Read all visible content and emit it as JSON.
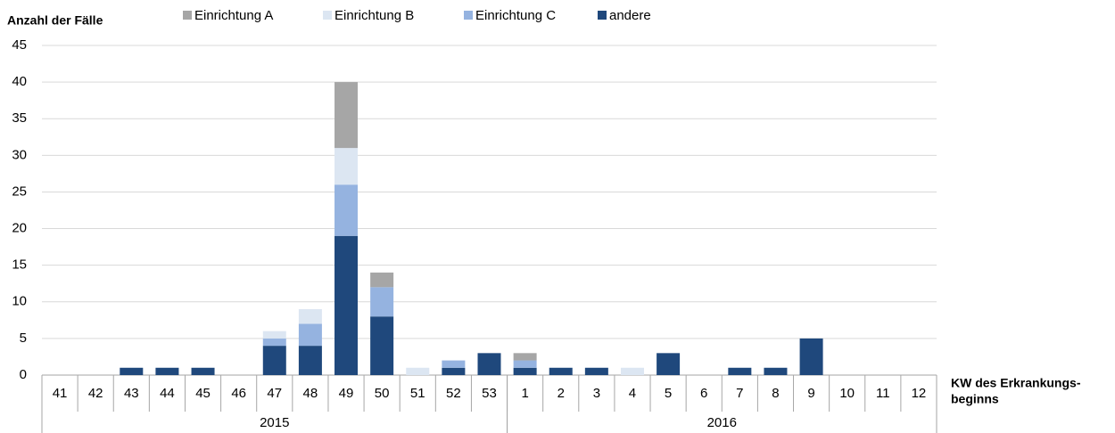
{
  "chart_data": {
    "type": "stacked_bar",
    "y_label": "Anzahl der Fälle",
    "x_label": [
      "KW des Erkrankungs-",
      "beginns"
    ],
    "categories": [
      "41",
      "42",
      "43",
      "44",
      "45",
      "46",
      "47",
      "48",
      "49",
      "50",
      "51",
      "52",
      "53",
      "1",
      "2",
      "3",
      "4",
      "5",
      "6",
      "7",
      "8",
      "9",
      "10",
      "11",
      "12"
    ],
    "x_groups": [
      {
        "label": "2015",
        "span": 13
      },
      {
        "label": "2016",
        "span": 12
      }
    ],
    "series": [
      {
        "name": "Einrichtung A",
        "color": "#a6a6a6",
        "values": [
          0,
          0,
          0,
          0,
          0,
          0,
          0,
          0,
          9,
          2,
          0,
          0,
          0,
          1,
          0,
          0,
          0,
          0,
          0,
          0,
          0,
          0,
          0,
          0,
          0
        ]
      },
      {
        "name": "Einrichtung B",
        "color": "#dce6f2",
        "values": [
          0,
          0,
          0,
          0,
          0,
          0,
          1,
          2,
          5,
          0,
          1,
          0,
          0,
          0,
          0,
          0,
          1,
          0,
          0,
          0,
          0,
          0,
          0,
          0,
          0
        ]
      },
      {
        "name": "Einrichtung C",
        "color": "#95b3e0",
        "values": [
          0,
          0,
          0,
          0,
          0,
          0,
          1,
          3,
          7,
          4,
          0,
          1,
          0,
          1,
          0,
          0,
          0,
          0,
          0,
          0,
          0,
          0,
          0,
          0,
          0
        ]
      },
      {
        "name": "andere",
        "color": "#1f487c",
        "values": [
          0,
          0,
          1,
          1,
          1,
          0,
          4,
          4,
          19,
          8,
          0,
          1,
          3,
          1,
          1,
          1,
          0,
          3,
          0,
          1,
          1,
          5,
          0,
          0,
          0
        ]
      }
    ],
    "ylim": [
      0,
      45
    ],
    "yticks": [
      0,
      5,
      10,
      15,
      20,
      25,
      30,
      35,
      40,
      45
    ],
    "grid": true,
    "legend": "top"
  }
}
